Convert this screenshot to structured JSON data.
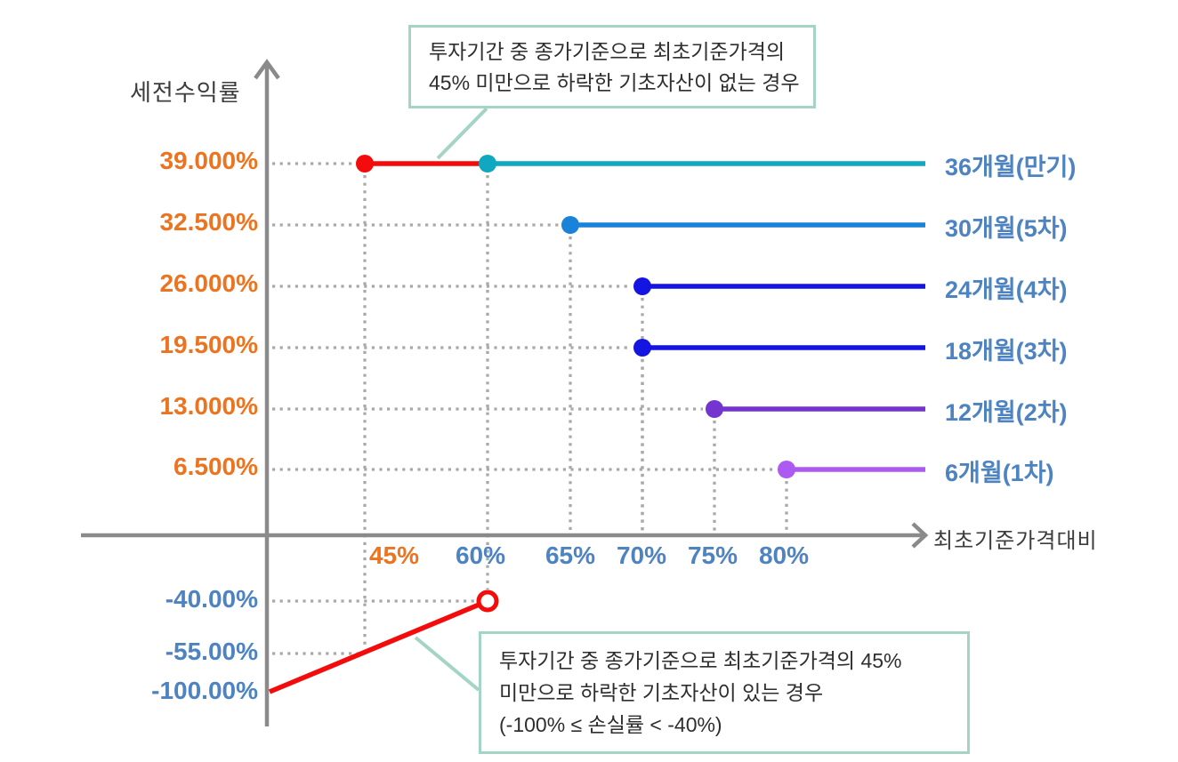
{
  "chart_data": {
    "type": "line",
    "title": "",
    "x_axis": {
      "label": "최초기준가격대비",
      "ticks": [
        {
          "label": "45%",
          "color": "#ec7420"
        },
        {
          "label": "60%",
          "color": "#4e83c2"
        },
        {
          "label": "65%",
          "color": "#4e83c2"
        },
        {
          "label": "70%",
          "color": "#4e83c2"
        },
        {
          "label": "75%",
          "color": "#4e83c2"
        },
        {
          "label": "80%",
          "color": "#4e83c2"
        }
      ]
    },
    "y_axis": {
      "label": "세전수익률",
      "positive_ticks": [
        {
          "label": "39.000%",
          "value": 39.0
        },
        {
          "label": "32.500%",
          "value": 32.5
        },
        {
          "label": "26.000%",
          "value": 26.0
        },
        {
          "label": "19.500%",
          "value": 19.5
        },
        {
          "label": "13.000%",
          "value": 13.0
        },
        {
          "label": "6.500%",
          "value": 6.5
        }
      ],
      "negative_ticks": [
        {
          "label": "-40.00%",
          "value": -40.0
        },
        {
          "label": "-55.00%",
          "value": -55.0
        },
        {
          "label": "-100.00%",
          "value": -100.0
        }
      ]
    },
    "series": [
      {
        "label": "36개월(만기)",
        "return_label": "39.000%",
        "return_pct": 39.0,
        "barrier_pct": 60,
        "knock_in_pct": 45,
        "color": "#0fa8c0",
        "knock_in_color": "#f40c0c"
      },
      {
        "label": "30개월(5차)",
        "return_label": "32.500%",
        "return_pct": 32.5,
        "barrier_pct": 65,
        "color": "#1b82d9"
      },
      {
        "label": "24개월(4차)",
        "return_label": "26.000%",
        "return_pct": 26.0,
        "barrier_pct": 70,
        "color": "#1515e2"
      },
      {
        "label": "18개월(3차)",
        "return_label": "19.500%",
        "return_pct": 19.5,
        "barrier_pct": 70,
        "color": "#1515e2"
      },
      {
        "label": "12개월(2차)",
        "return_label": "13.000%",
        "return_pct": 13.0,
        "barrier_pct": 75,
        "color": "#7434d0"
      },
      {
        "label": "6개월(1차)",
        "return_label": "6.500%",
        "return_pct": 6.5,
        "barrier_pct": 80,
        "color": "#ad5af3"
      }
    ],
    "loss_line": {
      "color": "#f40c0c",
      "from": {
        "x_pct": 0,
        "loss_label": "-100.00%",
        "loss_pct": -100
      },
      "to": {
        "x_pct": 60,
        "loss_label": "-40.00%",
        "loss_pct": -40
      },
      "open_endpoint": true
    },
    "callouts": {
      "top": {
        "lines": [
          "투자기간 중 종가기준으로 최초기준가격의",
          "45% 미만으로 하락한 기초자산이 없는 경우"
        ]
      },
      "bottom": {
        "lines": [
          "투자기간 중 종가기준으로 최초기준가격의 45%",
          "미만으로 하락한 기초자산이 있는 경우",
          "(-100% ≤ 손실률 < -40%)"
        ]
      }
    }
  },
  "palette": {
    "axis": "#8a8a8a",
    "dotted": "#a9a9a9",
    "callout_border": "#a3d4c5",
    "orange": "#ec7420",
    "blue": "#4e83c2",
    "red": "#f40c0c",
    "text": "#3c3c3c"
  }
}
